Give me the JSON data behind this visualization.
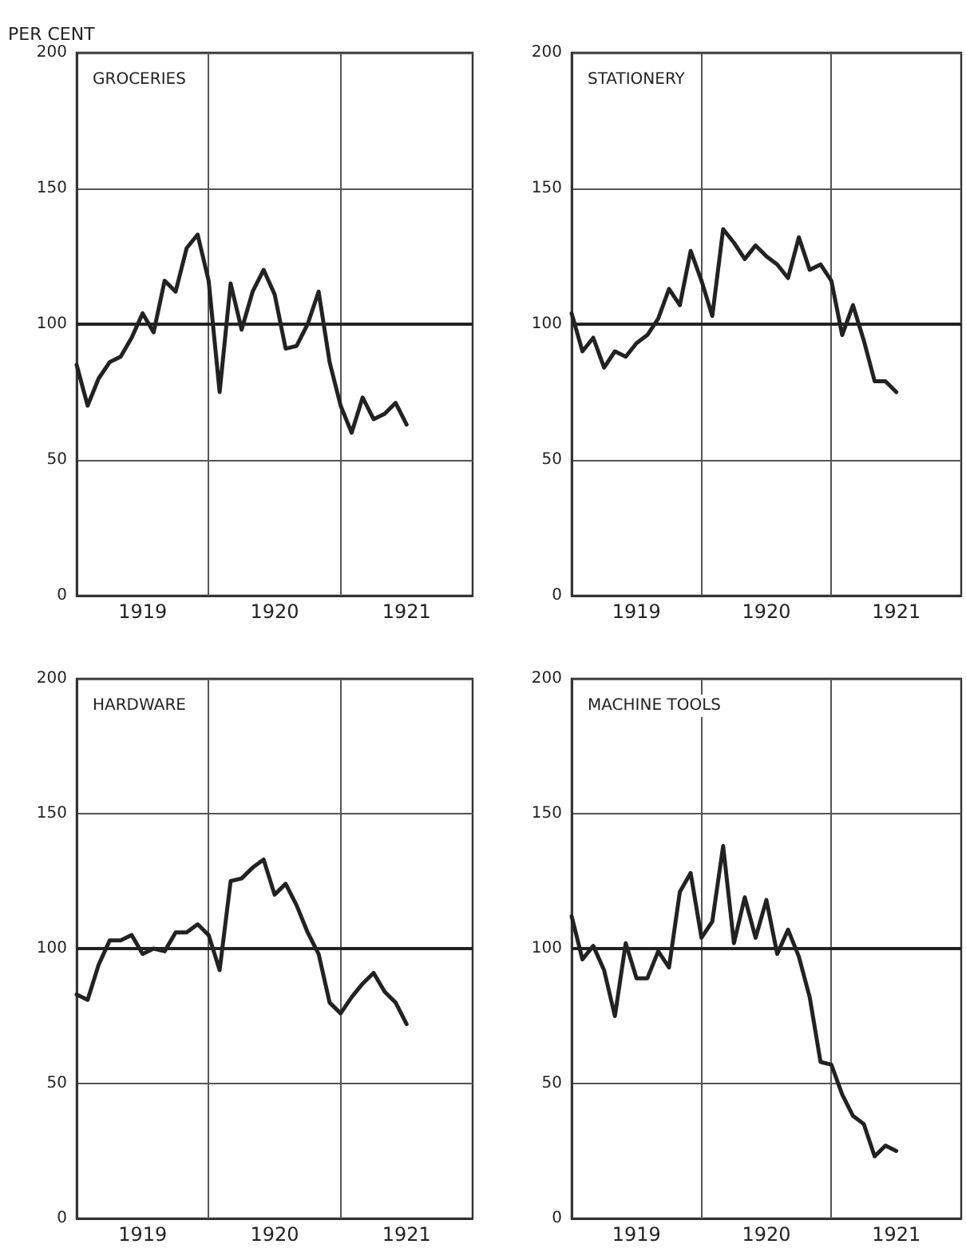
{
  "chart_data": [
    {
      "type": "line",
      "title": "GROCERIES",
      "ylabel": "PER CENT",
      "color": "#222222",
      "marker": "none",
      "grid": true,
      "x": [
        "1919-01",
        "1919-02",
        "1919-03",
        "1919-04",
        "1919-05",
        "1919-06",
        "1919-07",
        "1919-08",
        "1919-09",
        "1919-10",
        "1919-11",
        "1919-12",
        "1920-01",
        "1920-02",
        "1920-03",
        "1920-04",
        "1920-05",
        "1920-06",
        "1920-07",
        "1920-08",
        "1920-09",
        "1920-10",
        "1920-11",
        "1920-12",
        "1921-01",
        "1921-02",
        "1921-03",
        "1921-04",
        "1921-05",
        "1921-06",
        "1921-07"
      ],
      "values": [
        85,
        70,
        80,
        86,
        88,
        95,
        104,
        97,
        116,
        112,
        128,
        133,
        116,
        75,
        115,
        98,
        112,
        120,
        111,
        91,
        92,
        100,
        112,
        86,
        70,
        60,
        73,
        65,
        67,
        71,
        63
      ],
      "xlim": [
        "1919-01",
        "1922-01"
      ],
      "xticks": [
        {
          "value": "1919-07",
          "label": "1919"
        },
        {
          "value": "1920-01",
          "label": null
        },
        {
          "value": "1920-07",
          "label": "1920"
        },
        {
          "value": "1921-01",
          "label": null
        },
        {
          "value": "1921-07",
          "label": "1921"
        }
      ],
      "ylim": [
        0,
        200
      ],
      "yticks": [
        0,
        50,
        100,
        150,
        200
      ],
      "ref_lines": [
        {
          "axis": "y",
          "value": 100
        }
      ]
    },
    {
      "type": "line",
      "title": "STATIONERY",
      "color": "#222222",
      "marker": "none",
      "grid": true,
      "x": [
        "1919-01",
        "1919-02",
        "1919-03",
        "1919-04",
        "1919-05",
        "1919-06",
        "1919-07",
        "1919-08",
        "1919-09",
        "1919-10",
        "1919-11",
        "1919-12",
        "1920-01",
        "1920-02",
        "1920-03",
        "1920-04",
        "1920-05",
        "1920-06",
        "1920-07",
        "1920-08",
        "1920-09",
        "1920-10",
        "1920-11",
        "1920-12",
        "1921-01",
        "1921-02",
        "1921-03",
        "1921-04",
        "1921-05",
        "1921-06",
        "1921-07"
      ],
      "values": [
        104,
        90,
        95,
        84,
        90,
        88,
        93,
        96,
        102,
        113,
        107,
        127,
        116,
        103,
        135,
        130,
        124,
        129,
        125,
        122,
        117,
        132,
        120,
        122,
        116,
        96,
        107,
        94,
        79,
        79,
        75
      ],
      "xlim": [
        "1919-01",
        "1922-01"
      ],
      "xticks": [
        {
          "value": "1919-07",
          "label": "1919"
        },
        {
          "value": "1920-01",
          "label": null
        },
        {
          "value": "1920-07",
          "label": "1920"
        },
        {
          "value": "1921-01",
          "label": null
        },
        {
          "value": "1921-07",
          "label": "1921"
        }
      ],
      "ylim": [
        0,
        200
      ],
      "yticks": [
        0,
        50,
        100,
        150,
        200
      ],
      "ref_lines": [
        {
          "axis": "y",
          "value": 100
        }
      ]
    },
    {
      "type": "line",
      "title": "HARDWARE",
      "color": "#222222",
      "marker": "none",
      "grid": true,
      "x": [
        "1919-01",
        "1919-02",
        "1919-03",
        "1919-04",
        "1919-05",
        "1919-06",
        "1919-07",
        "1919-08",
        "1919-09",
        "1919-10",
        "1919-11",
        "1919-12",
        "1920-01",
        "1920-02",
        "1920-03",
        "1920-04",
        "1920-05",
        "1920-06",
        "1920-07",
        "1920-08",
        "1920-09",
        "1920-10",
        "1920-11",
        "1920-12",
        "1921-01",
        "1921-02",
        "1921-03",
        "1921-04",
        "1921-05",
        "1921-06",
        "1921-07"
      ],
      "values": [
        83,
        81,
        94,
        103,
        103,
        105,
        98,
        100,
        99,
        106,
        106,
        109,
        105,
        92,
        125,
        126,
        130,
        133,
        120,
        124,
        116,
        106,
        98,
        80,
        76,
        82,
        87,
        91,
        84,
        80,
        72
      ],
      "xlim": [
        "1919-01",
        "1922-01"
      ],
      "xticks": [
        {
          "value": "1919-07",
          "label": "1919"
        },
        {
          "value": "1920-01",
          "label": null
        },
        {
          "value": "1920-07",
          "label": "1920"
        },
        {
          "value": "1921-01",
          "label": null
        },
        {
          "value": "1921-07",
          "label": "1921"
        }
      ],
      "ylim": [
        0,
        200
      ],
      "yticks": [
        0,
        50,
        100,
        150,
        200
      ],
      "ref_lines": [
        {
          "axis": "y",
          "value": 100
        }
      ]
    },
    {
      "type": "line",
      "title": "MACHINE TOOLS",
      "color": "#222222",
      "marker": "none",
      "grid": true,
      "x": [
        "1919-01",
        "1919-02",
        "1919-03",
        "1919-04",
        "1919-05",
        "1919-06",
        "1919-07",
        "1919-08",
        "1919-09",
        "1919-10",
        "1919-11",
        "1919-12",
        "1920-01",
        "1920-02",
        "1920-03",
        "1920-04",
        "1920-05",
        "1920-06",
        "1920-07",
        "1920-08",
        "1920-09",
        "1920-10",
        "1920-11",
        "1920-12",
        "1921-01",
        "1921-02",
        "1921-03",
        "1921-04",
        "1921-05",
        "1921-06",
        "1921-07"
      ],
      "values": [
        112,
        96,
        101,
        92,
        75,
        102,
        89,
        89,
        99,
        93,
        121,
        128,
        104,
        110,
        138,
        102,
        119,
        104,
        118,
        98,
        107,
        97,
        82,
        58,
        57,
        46,
        38,
        35,
        23,
        27,
        25
      ],
      "xlim": [
        "1919-01",
        "1922-01"
      ],
      "xticks": [
        {
          "value": "1919-07",
          "label": "1919"
        },
        {
          "value": "1920-01",
          "label": null
        },
        {
          "value": "1920-07",
          "label": "1920"
        },
        {
          "value": "1921-01",
          "label": null
        },
        {
          "value": "1921-07",
          "label": "1921"
        }
      ],
      "ylim": [
        0,
        200
      ],
      "yticks": [
        0,
        50,
        100,
        150,
        200
      ],
      "ref_lines": [
        {
          "axis": "y",
          "value": 100
        }
      ]
    }
  ]
}
